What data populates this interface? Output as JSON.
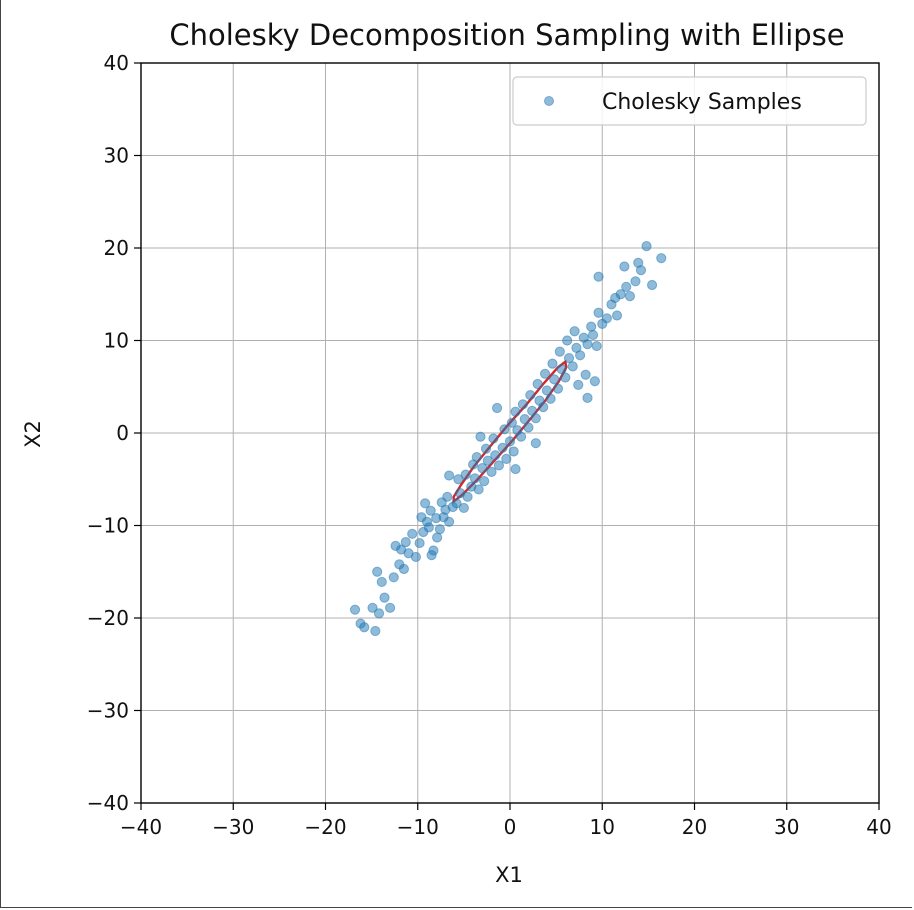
{
  "chart_data": {
    "type": "scatter",
    "title": "Cholesky Decomposition Sampling with Ellipse",
    "xlabel": "X1",
    "ylabel": "X2",
    "xlim": [
      -40,
      40
    ],
    "ylim": [
      -40,
      40
    ],
    "xticks": [
      -40,
      -30,
      -20,
      -10,
      0,
      10,
      20,
      30,
      40
    ],
    "yticks": [
      -40,
      -30,
      -20,
      -10,
      0,
      10,
      20,
      30,
      40
    ],
    "xtick_labels": [
      "−40",
      "−30",
      "−20",
      "−10",
      "0",
      "10",
      "20",
      "30",
      "40"
    ],
    "ytick_labels": [
      "−40",
      "−30",
      "−20",
      "−10",
      "0",
      "10",
      "20",
      "30",
      "40"
    ],
    "grid": true,
    "legend": {
      "placement": "top-right",
      "entries": [
        "Cholesky Samples"
      ]
    },
    "series": [
      {
        "name": "Cholesky Samples",
        "color": "#1f77b4",
        "points": [
          [
            -16.8,
            -19.1
          ],
          [
            -16.2,
            -20.6
          ],
          [
            -15.8,
            -21.0
          ],
          [
            -14.6,
            -21.4
          ],
          [
            -14.9,
            -18.9
          ],
          [
            -14.2,
            -19.5
          ],
          [
            -13.6,
            -17.8
          ],
          [
            -13.9,
            -16.1
          ],
          [
            -14.4,
            -15.0
          ],
          [
            -13.0,
            -18.9
          ],
          [
            -12.6,
            -15.6
          ],
          [
            -12.0,
            -14.2
          ],
          [
            -11.5,
            -14.7
          ],
          [
            -12.4,
            -12.2
          ],
          [
            -11.8,
            -12.6
          ],
          [
            -11.0,
            -13.0
          ],
          [
            -10.2,
            -13.4
          ],
          [
            -11.3,
            -11.8
          ],
          [
            -10.6,
            -10.9
          ],
          [
            -9.8,
            -11.9
          ],
          [
            -9.4,
            -10.7
          ],
          [
            -9.0,
            -9.6
          ],
          [
            -9.6,
            -9.1
          ],
          [
            -8.8,
            -10.2
          ],
          [
            -8.3,
            -12.7
          ],
          [
            -7.9,
            -11.3
          ],
          [
            -8.6,
            -8.4
          ],
          [
            -8.0,
            -9.2
          ],
          [
            -7.6,
            -10.4
          ],
          [
            -7.2,
            -9.1
          ],
          [
            -7.0,
            -8.3
          ],
          [
            -6.6,
            -9.6
          ],
          [
            -6.2,
            -8.0
          ],
          [
            -6.8,
            -6.9
          ],
          [
            -7.4,
            -7.5
          ],
          [
            -9.2,
            -7.6
          ],
          [
            -8.5,
            -13.2
          ],
          [
            -5.8,
            -7.6
          ],
          [
            -5.4,
            -6.5
          ],
          [
            -5.0,
            -8.1
          ],
          [
            -4.6,
            -6.9
          ],
          [
            -4.2,
            -5.8
          ],
          [
            -5.6,
            -5.0
          ],
          [
            -4.8,
            -4.5
          ],
          [
            -3.8,
            -4.9
          ],
          [
            -3.4,
            -6.1
          ],
          [
            -3.0,
            -3.8
          ],
          [
            -4.0,
            -3.4
          ],
          [
            -3.6,
            -2.6
          ],
          [
            -2.8,
            -5.2
          ],
          [
            -2.4,
            -3.0
          ],
          [
            -2.0,
            -4.2
          ],
          [
            -2.6,
            -1.7
          ],
          [
            -1.6,
            -2.4
          ],
          [
            -1.2,
            -3.5
          ],
          [
            -0.8,
            -1.6
          ],
          [
            -1.8,
            -0.6
          ],
          [
            -0.4,
            -2.8
          ],
          [
            0.0,
            -0.9
          ],
          [
            -0.6,
            0.4
          ],
          [
            0.4,
            -2.0
          ],
          [
            0.8,
            0.3
          ],
          [
            0.2,
            1.1
          ],
          [
            1.2,
            -0.4
          ],
          [
            1.6,
            1.5
          ],
          [
            0.6,
            2.3
          ],
          [
            2.0,
            0.6
          ],
          [
            2.4,
            2.4
          ],
          [
            1.4,
            3.1
          ],
          [
            2.8,
            1.6
          ],
          [
            3.2,
            3.5
          ],
          [
            2.2,
            4.1
          ],
          [
            3.6,
            2.8
          ],
          [
            4.0,
            4.6
          ],
          [
            3.0,
            5.3
          ],
          [
            4.4,
            3.7
          ],
          [
            4.8,
            5.8
          ],
          [
            3.8,
            6.4
          ],
          [
            5.2,
            4.8
          ],
          [
            5.6,
            6.9
          ],
          [
            4.6,
            7.5
          ],
          [
            6.0,
            6.0
          ],
          [
            6.4,
            8.1
          ],
          [
            5.4,
            8.8
          ],
          [
            6.8,
            7.2
          ],
          [
            7.2,
            9.2
          ],
          [
            6.2,
            10.0
          ],
          [
            7.6,
            8.4
          ],
          [
            8.0,
            10.3
          ],
          [
            7.0,
            11.0
          ],
          [
            8.4,
            9.6
          ],
          [
            8.8,
            11.5
          ],
          [
            9.4,
            9.4
          ],
          [
            9.0,
            10.6
          ],
          [
            10.0,
            11.8
          ],
          [
            9.6,
            13.0
          ],
          [
            10.5,
            12.4
          ],
          [
            11.0,
            13.9
          ],
          [
            11.6,
            12.7
          ],
          [
            12.0,
            15.0
          ],
          [
            11.4,
            14.6
          ],
          [
            12.6,
            15.8
          ],
          [
            13.0,
            14.8
          ],
          [
            13.6,
            16.4
          ],
          [
            14.2,
            17.6
          ],
          [
            14.8,
            20.2
          ],
          [
            15.4,
            16.0
          ],
          [
            16.4,
            18.9
          ],
          [
            12.4,
            18.0
          ],
          [
            9.6,
            16.9
          ],
          [
            13.9,
            18.4
          ],
          [
            8.2,
            6.3
          ],
          [
            8.4,
            3.8
          ],
          [
            9.2,
            5.6
          ],
          [
            7.4,
            5.2
          ],
          [
            -1.4,
            2.7
          ],
          [
            -3.2,
            -0.4
          ],
          [
            0.6,
            -3.9
          ],
          [
            2.8,
            -1.1
          ],
          [
            -6.6,
            -4.6
          ]
        ]
      }
    ],
    "ellipse": {
      "color": "#d62728",
      "center": [
        0,
        0
      ],
      "polyline": [
        [
          -6.1,
          -7.4
        ],
        [
          -5.2,
          -6.7
        ],
        [
          -3.6,
          -5.1
        ],
        [
          -1.8,
          -3.1
        ],
        [
          0.2,
          -0.9
        ],
        [
          2.1,
          1.4
        ],
        [
          3.9,
          3.6
        ],
        [
          5.3,
          5.6
        ],
        [
          6.1,
          7.1
        ],
        [
          6.0,
          7.7
        ],
        [
          5.2,
          7.1
        ],
        [
          3.6,
          5.3
        ],
        [
          1.8,
          3.1
        ],
        [
          -0.2,
          0.9
        ],
        [
          -2.1,
          -1.4
        ],
        [
          -3.9,
          -3.6
        ],
        [
          -5.3,
          -5.6
        ],
        [
          -6.1,
          -6.9
        ],
        [
          -6.1,
          -7.4
        ]
      ]
    }
  }
}
